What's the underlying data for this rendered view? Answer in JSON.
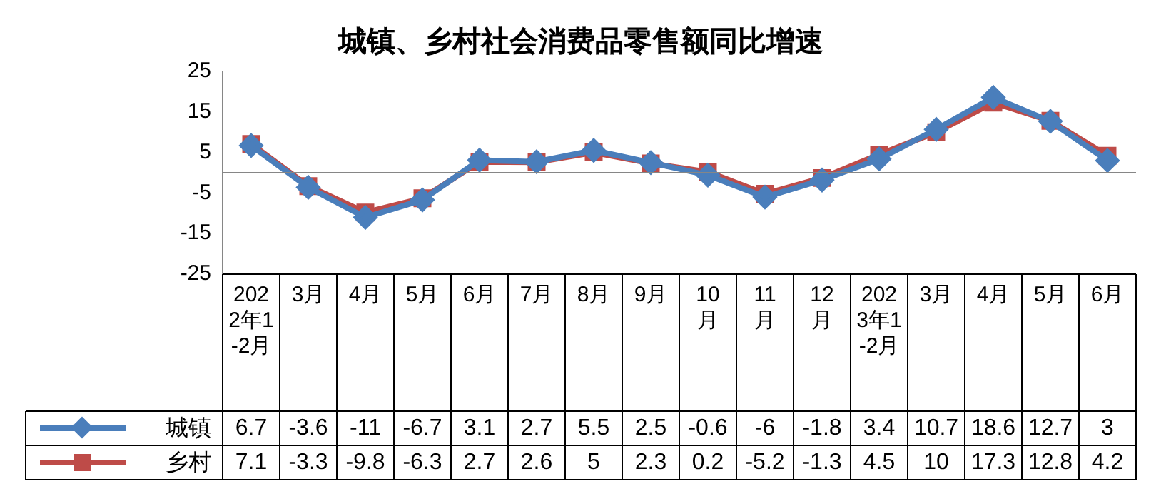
{
  "chart_data": {
    "type": "line",
    "title": "城镇、乡村社会消费品零售额同比增速",
    "categories": [
      "2022年1-2月",
      "3月",
      "4月",
      "5月",
      "6月",
      "7月",
      "8月",
      "9月",
      "10月",
      "11月",
      "12月",
      "2023年1-2月",
      "3月",
      "4月",
      "5月",
      "6月"
    ],
    "series": [
      {
        "name": "城镇",
        "color": "#4a7ebb",
        "marker": "diamond",
        "values": [
          6.7,
          -3.6,
          -11,
          -6.7,
          3.1,
          2.7,
          5.5,
          2.5,
          -0.6,
          -6,
          -1.8,
          3.4,
          10.7,
          18.6,
          12.7,
          3
        ]
      },
      {
        "name": "乡村",
        "color": "#be4b48",
        "marker": "square",
        "values": [
          7.1,
          -3.3,
          -9.8,
          -6.3,
          2.7,
          2.6,
          5,
          2.3,
          0.2,
          -5.2,
          -1.3,
          4.5,
          10,
          17.3,
          12.8,
          4.2
        ]
      }
    ],
    "ylim": [
      -25,
      25
    ],
    "yticks": [
      -25,
      -15,
      -5,
      5,
      15,
      25
    ],
    "grid": false,
    "legend": "bottom",
    "data_labels": true,
    "line_style": "solid"
  }
}
